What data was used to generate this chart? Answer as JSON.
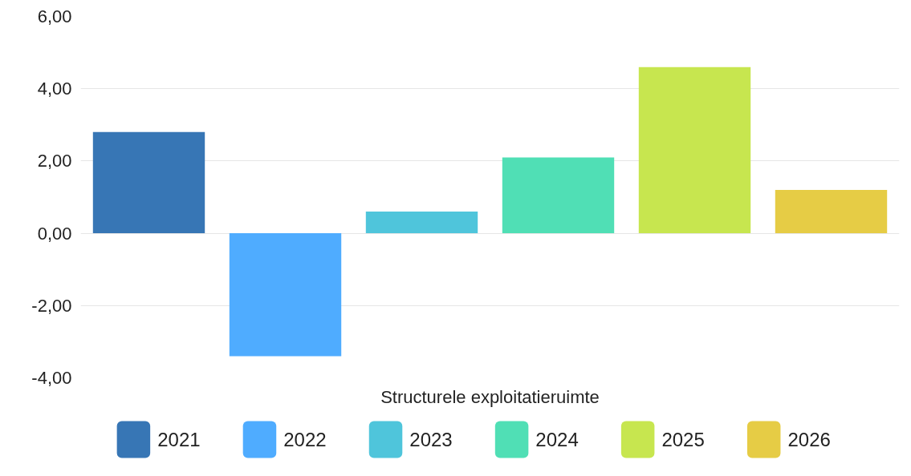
{
  "chart_data": {
    "type": "bar",
    "categories": [
      "Structurele exploitatieruimte"
    ],
    "series": [
      {
        "name": "2021",
        "color": "#3776b5",
        "values": [
          2.8
        ]
      },
      {
        "name": "2022",
        "color": "#4facff",
        "values": [
          -3.4
        ]
      },
      {
        "name": "2023",
        "color": "#4fc5db",
        "values": [
          0.6
        ]
      },
      {
        "name": "2024",
        "color": "#50dfb5",
        "values": [
          2.1
        ]
      },
      {
        "name": "2025",
        "color": "#c7e64f",
        "values": [
          4.6
        ]
      },
      {
        "name": "2026",
        "color": "#e6cc45",
        "values": [
          1.2
        ]
      }
    ],
    "ylim": [
      -4,
      6
    ],
    "yticks": [
      {
        "value": -4,
        "label": "-4,00"
      },
      {
        "value": -2,
        "label": "-2,00"
      },
      {
        "value": 0,
        "label": "0,00"
      },
      {
        "value": 2,
        "label": "2,00"
      },
      {
        "value": 4,
        "label": "4,00"
      },
      {
        "value": 6,
        "label": "6,00"
      }
    ],
    "grid": "y",
    "legend": "bottom"
  }
}
